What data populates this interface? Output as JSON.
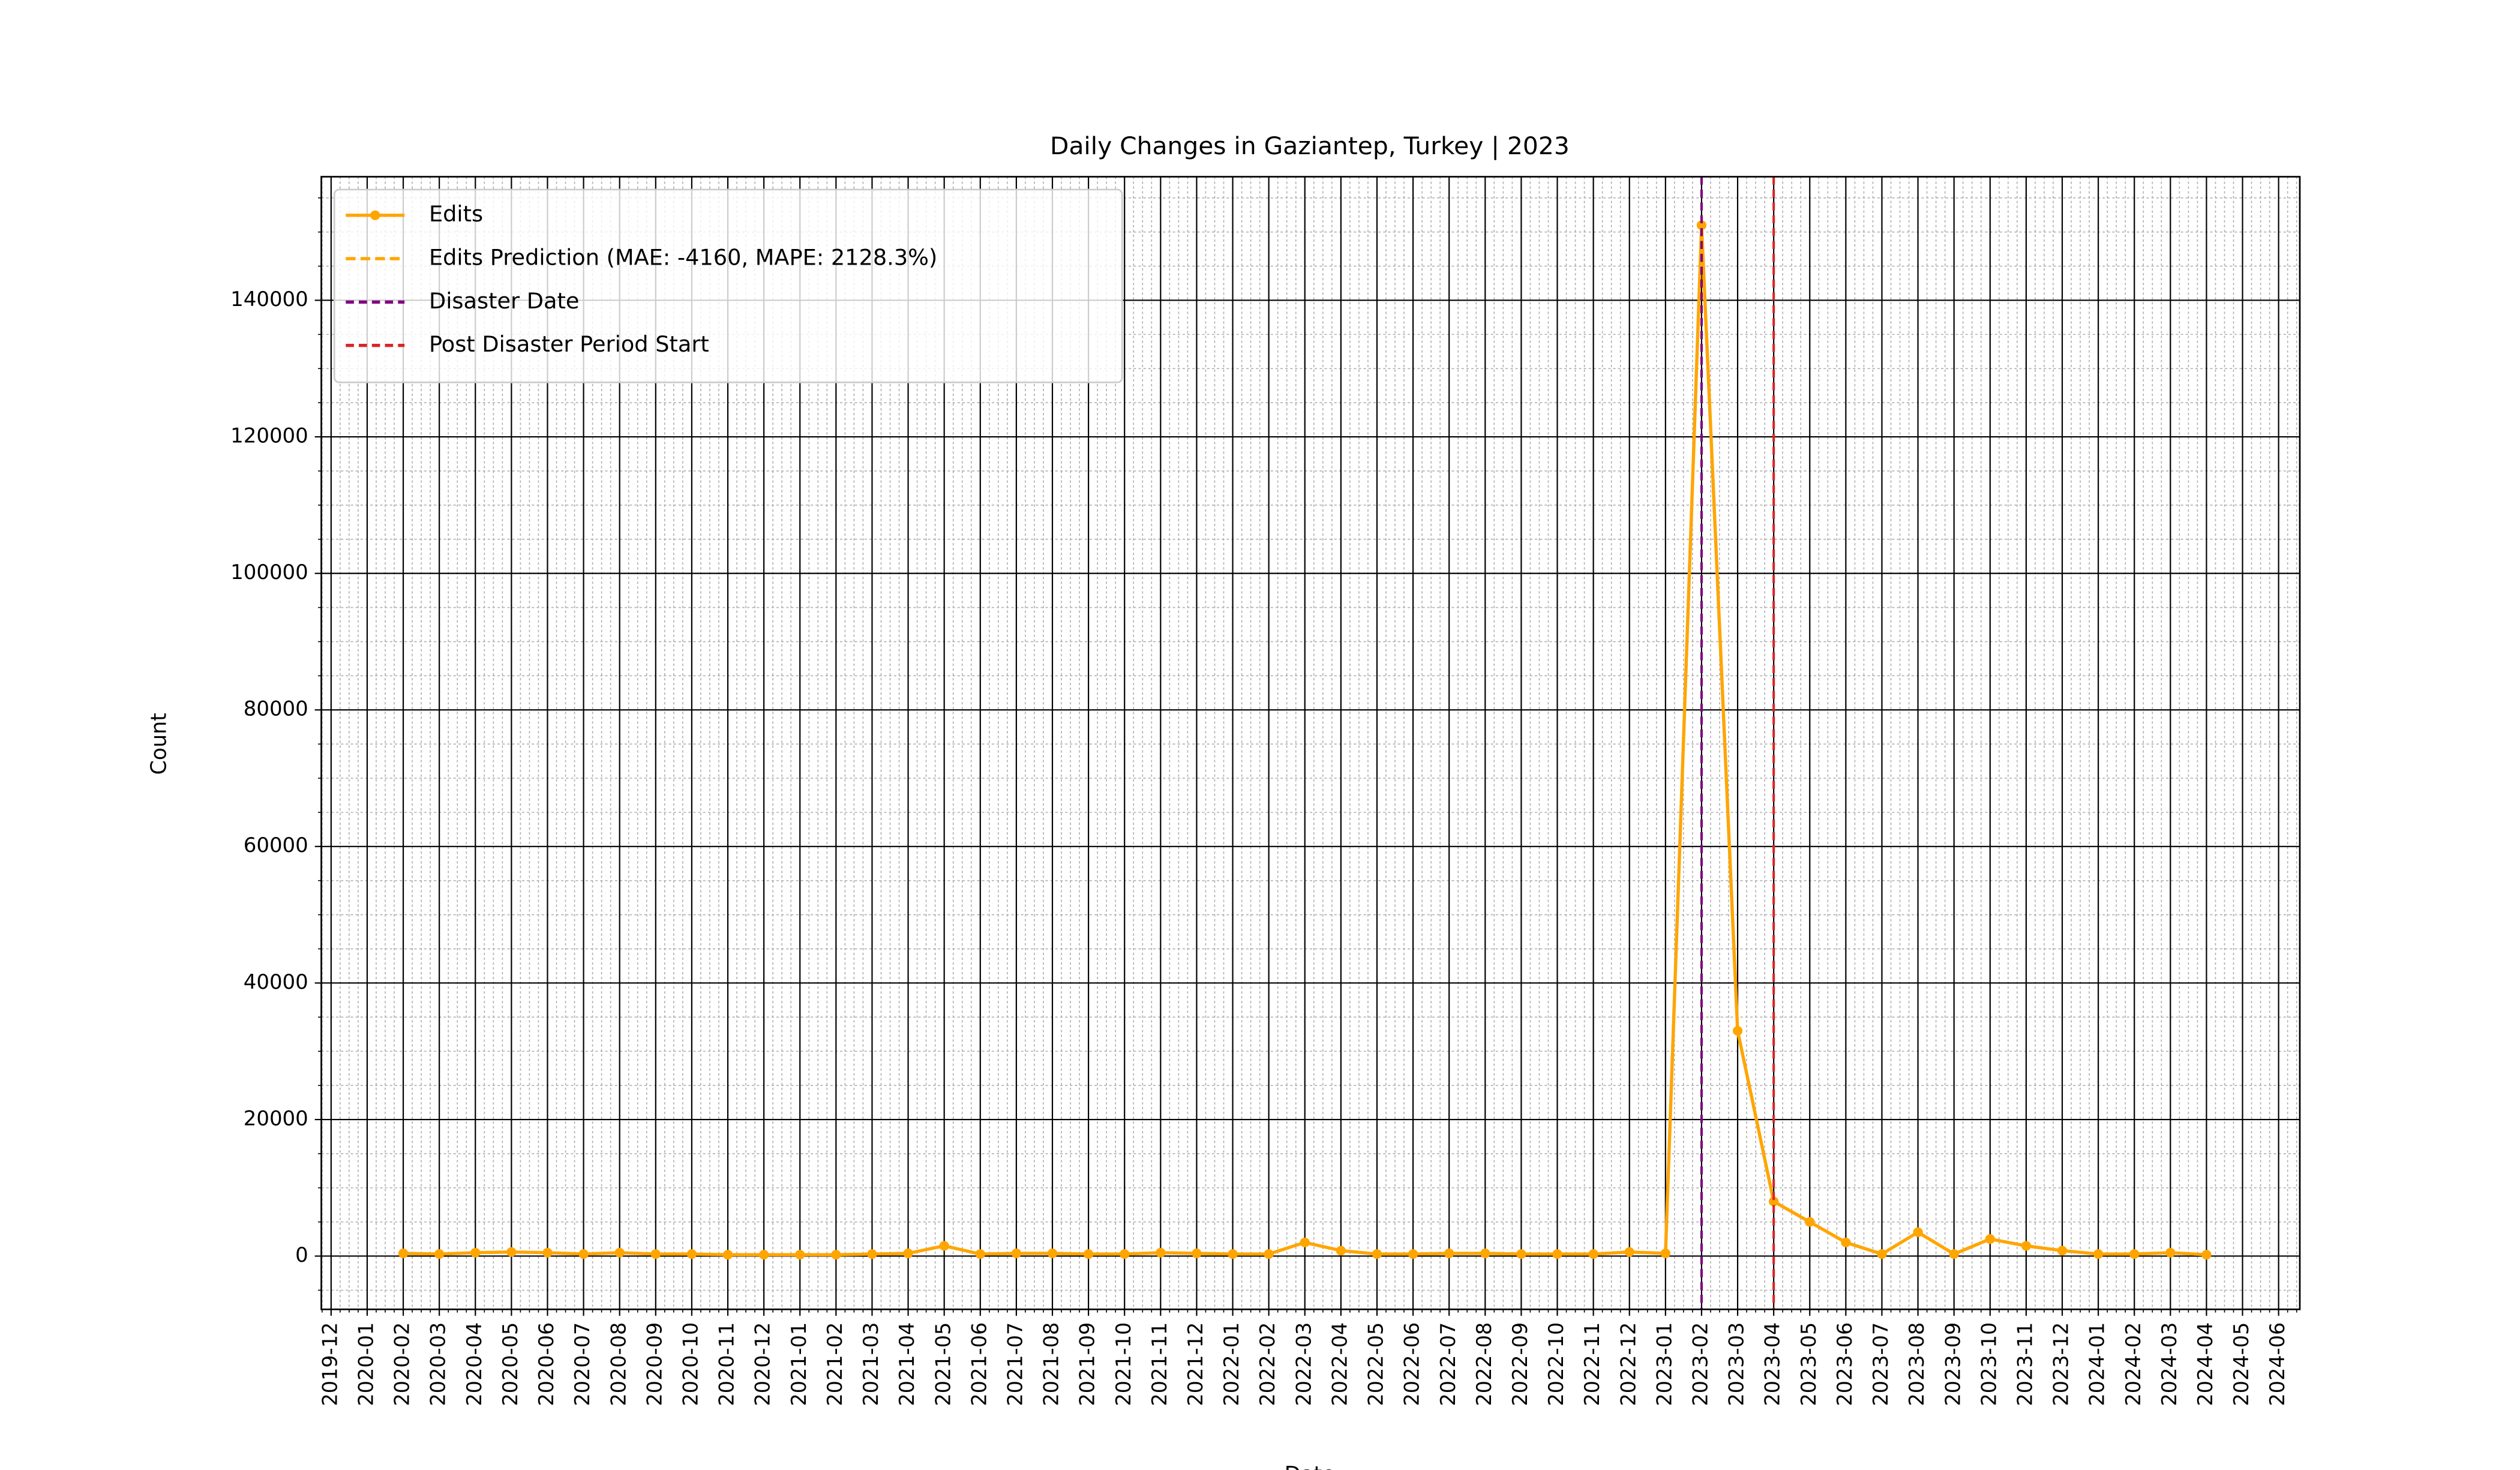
{
  "chart_data": {
    "type": "line",
    "title": "Daily Changes in Gaziantep, Turkey | 2023",
    "x_label": "Date",
    "y_label": "Count",
    "x": [
      "2020-02",
      "2020-03",
      "2020-04",
      "2020-05",
      "2020-06",
      "2020-07",
      "2020-08",
      "2020-09",
      "2020-10",
      "2020-11",
      "2020-12",
      "2021-01",
      "2021-02",
      "2021-03",
      "2021-04",
      "2021-05",
      "2021-06",
      "2021-07",
      "2021-08",
      "2021-09",
      "2021-10",
      "2021-11",
      "2021-12",
      "2022-01",
      "2022-02",
      "2022-03",
      "2022-04",
      "2022-05",
      "2022-06",
      "2022-07",
      "2022-08",
      "2022-09",
      "2022-10",
      "2022-11",
      "2022-12",
      "2023-01",
      "2023-02",
      "2023-03",
      "2023-04",
      "2023-05",
      "2023-06",
      "2023-07",
      "2023-08",
      "2023-09",
      "2023-10",
      "2023-11",
      "2023-12",
      "2024-01",
      "2024-02",
      "2024-03",
      "2024-04"
    ],
    "series": [
      {
        "name": "Edits",
        "color": "#ffa500",
        "dash": false,
        "markers": true,
        "values": [
          400,
          300,
          500,
          600,
          500,
          300,
          500,
          300,
          300,
          200,
          200,
          200,
          200,
          300,
          400,
          1500,
          300,
          400,
          400,
          300,
          300,
          500,
          400,
          300,
          300,
          2000,
          800,
          300,
          300,
          400,
          400,
          300,
          300,
          300,
          600,
          400,
          151000,
          33000,
          8000,
          5000,
          2000,
          300,
          3500,
          300,
          2500,
          1500,
          800,
          300,
          300,
          500,
          200
        ]
      },
      {
        "name": "Edits Prediction (MAE: -4160, MAPE: 2128.3%)",
        "color": "#ffa500",
        "dash": true,
        "markers": false
      }
    ],
    "vlines": [
      {
        "name": "Disaster Date",
        "x": "2023-02",
        "color": "#800080"
      },
      {
        "name": "Post Disaster Period Start",
        "x": "2023-04",
        "color": "#d62728"
      }
    ],
    "xlim": [
      "2019-12",
      "2024-06"
    ],
    "xticks": [
      "2019-12",
      "2020-01",
      "2020-02",
      "2020-03",
      "2020-04",
      "2020-05",
      "2020-06",
      "2020-07",
      "2020-08",
      "2020-09",
      "2020-10",
      "2020-11",
      "2020-12",
      "2021-01",
      "2021-02",
      "2021-03",
      "2021-04",
      "2021-05",
      "2021-06",
      "2021-07",
      "2021-08",
      "2021-09",
      "2021-10",
      "2021-11",
      "2021-12",
      "2022-01",
      "2022-02",
      "2022-03",
      "2022-04",
      "2022-05",
      "2022-06",
      "2022-07",
      "2022-08",
      "2022-09",
      "2022-10",
      "2022-11",
      "2022-12",
      "2023-01",
      "2023-02",
      "2023-03",
      "2023-04",
      "2023-05",
      "2023-06",
      "2023-07",
      "2023-08",
      "2023-09",
      "2023-10",
      "2023-11",
      "2023-12",
      "2024-01",
      "2024-02",
      "2024-03",
      "2024-04",
      "2024-05",
      "2024-06"
    ],
    "ylim": [
      -7800,
      158100
    ],
    "yticks": [
      0,
      20000,
      40000,
      60000,
      80000,
      100000,
      120000,
      140000
    ],
    "grid": true,
    "legend": "upper left"
  }
}
